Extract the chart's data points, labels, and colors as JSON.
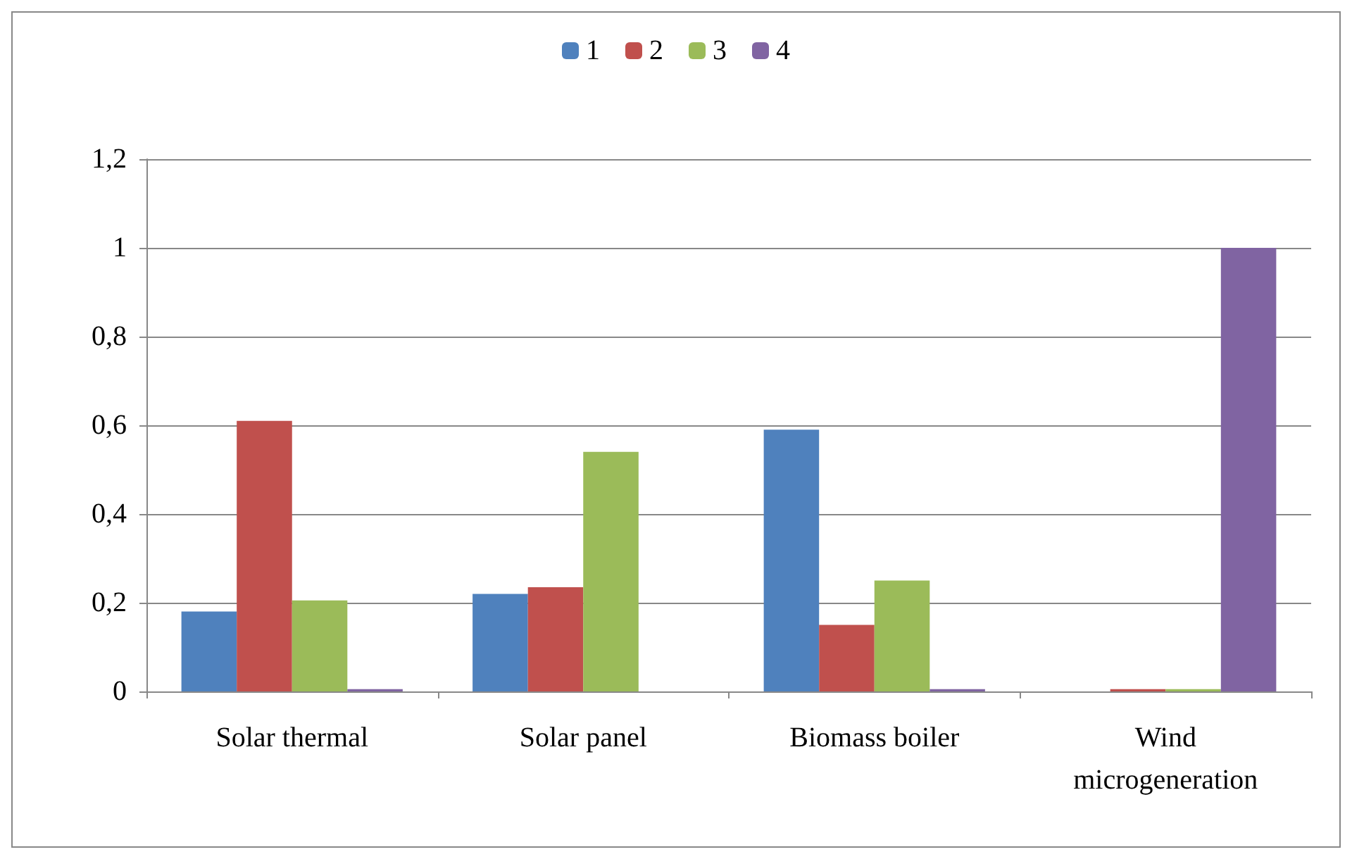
{
  "chart_data": {
    "type": "bar",
    "categories": [
      "Solar thermal",
      "Solar panel",
      "Biomass boiler",
      "Wind microgeneration"
    ],
    "series": [
      {
        "name": "1",
        "color": "#4f81bd",
        "values": [
          0.18,
          0.22,
          0.59,
          0
        ]
      },
      {
        "name": "2",
        "color": "#c0504d",
        "values": [
          0.61,
          0.235,
          0.15,
          0.005
        ]
      },
      {
        "name": "3",
        "color": "#9bbb59",
        "values": [
          0.205,
          0.54,
          0.25,
          0.005
        ]
      },
      {
        "name": "4",
        "color": "#8064a2",
        "values": [
          0.005,
          0,
          0.005,
          1
        ]
      }
    ],
    "ylim": [
      0,
      1.2
    ],
    "yticks": [
      0,
      {
        "value": 0.2,
        "label": "0,2"
      },
      {
        "value": 0.4,
        "label": "0,4"
      },
      {
        "value": 0.6,
        "label": "0,6"
      },
      {
        "value": 0.8,
        "label": "0,8"
      },
      1,
      {
        "value": 1.2,
        "label": "1,2"
      }
    ],
    "grid": "y",
    "legend": "top"
  }
}
